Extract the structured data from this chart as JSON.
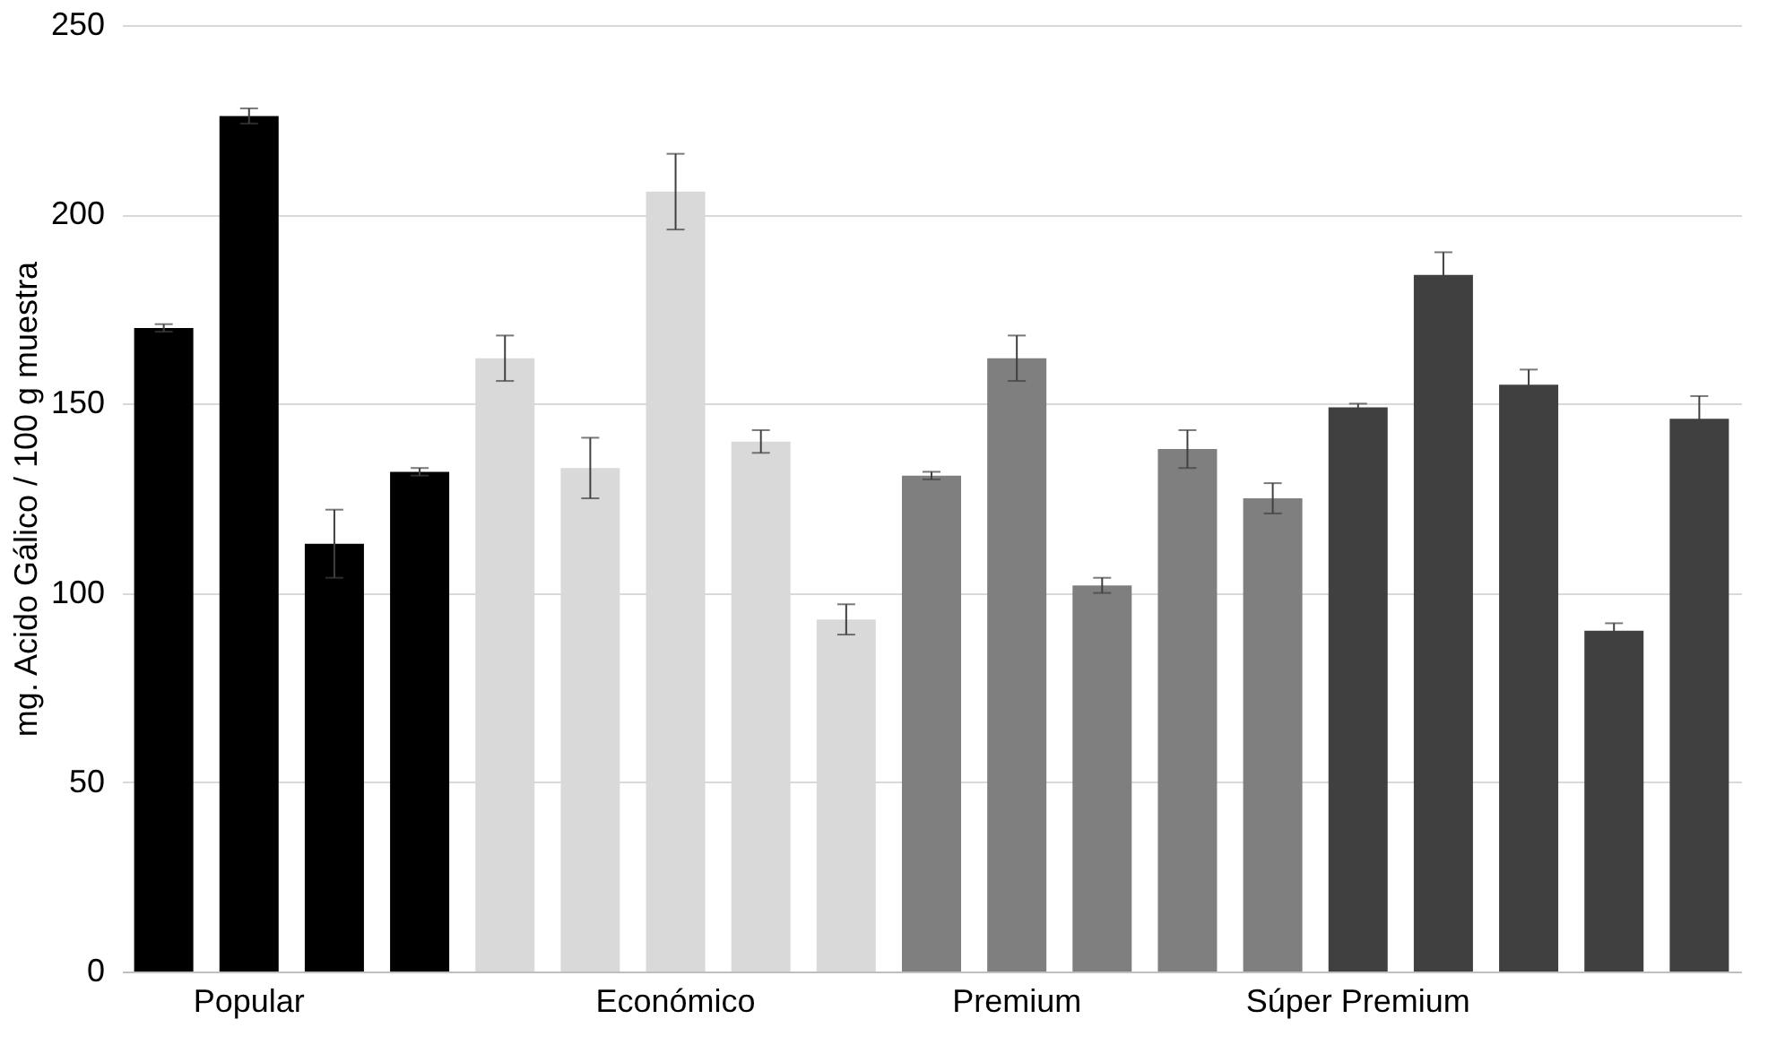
{
  "chart_data": {
    "type": "bar",
    "ylabel": "mg. Acido Gálico / 100 g muestra",
    "categories": [
      null,
      "Popular",
      null,
      null,
      null,
      null,
      "Económico",
      null,
      null,
      null,
      "Premium",
      null,
      null,
      null,
      "Súper Premium",
      null,
      null,
      null,
      null
    ],
    "values": [
      170,
      226,
      113,
      132,
      162,
      133,
      206,
      140,
      93,
      131,
      162,
      102,
      138,
      125,
      149,
      184,
      155,
      90,
      146
    ],
    "errors": [
      1,
      2,
      9,
      1,
      6,
      8,
      10,
      3,
      4,
      1,
      6,
      2,
      5,
      4,
      1,
      6,
      4,
      2,
      6
    ],
    "colors": [
      "#000000",
      "#000000",
      "#000000",
      "#000000",
      "#d9d9d9",
      "#d9d9d9",
      "#d9d9d9",
      "#d9d9d9",
      "#d9d9d9",
      "#7f7f7f",
      "#7f7f7f",
      "#7f7f7f",
      "#7f7f7f",
      "#7f7f7f",
      "#404040",
      "#404040",
      "#404040",
      "#404040",
      "#404040"
    ],
    "ylim": [
      0,
      250
    ],
    "yticks": [
      0,
      50,
      100,
      150,
      200,
      250
    ],
    "grid": "y"
  }
}
